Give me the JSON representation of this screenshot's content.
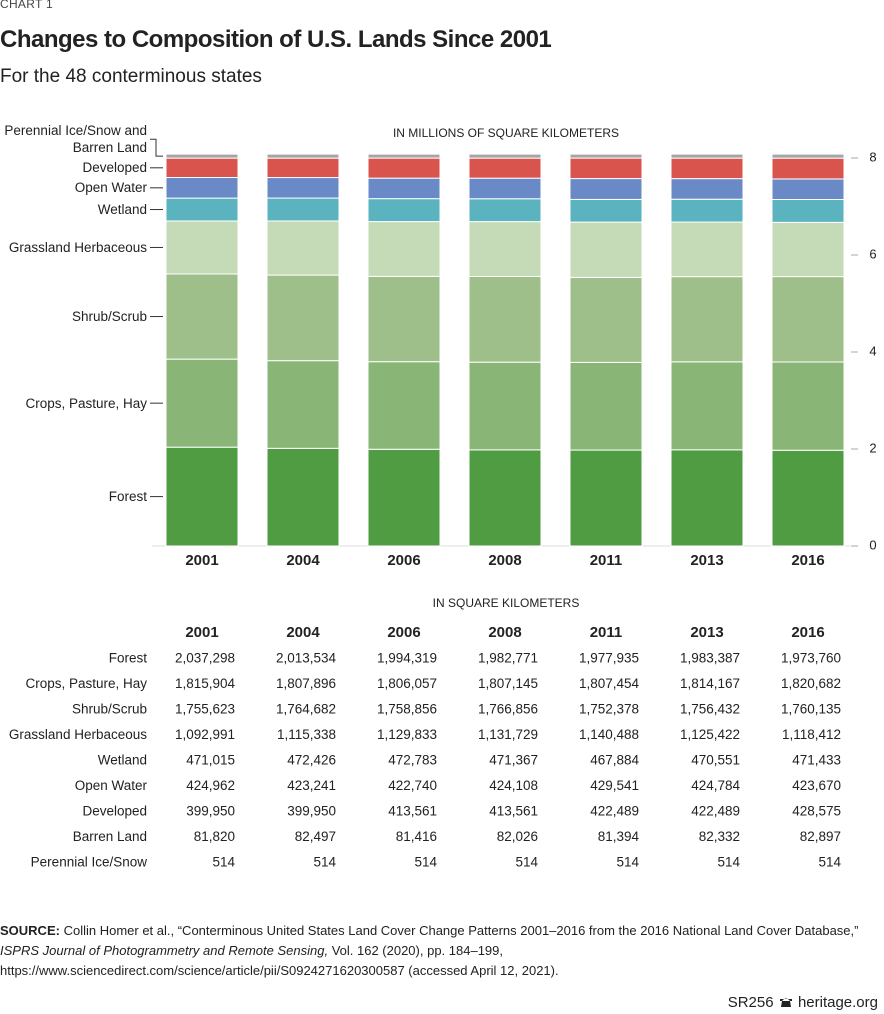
{
  "header": {
    "kicker": "CHART 1",
    "title": "Changes to Composition of U.S. Lands Since 2001",
    "subtitle": "For the 48 conterminous states"
  },
  "chart_data": {
    "type": "bar",
    "stacked": true,
    "y_label": "IN MILLIONS OF SQUARE KILOMETERS",
    "y_axis_side": "right",
    "categories": [
      "2001",
      "2004",
      "2006",
      "2008",
      "2011",
      "2013",
      "2016"
    ],
    "ylim": [
      0,
      8
    ],
    "yticks": [
      0,
      2,
      4,
      6,
      8
    ],
    "series": [
      {
        "name": "Forest",
        "color": "#4f9c43",
        "values": [
          2.037298,
          2.013534,
          1.994319,
          1.982771,
          1.977935,
          1.983387,
          1.97376
        ]
      },
      {
        "name": "Crops, Pasture, Hay",
        "color": "#89b677",
        "values": [
          1.815904,
          1.807896,
          1.806057,
          1.807145,
          1.807454,
          1.814167,
          1.820682
        ]
      },
      {
        "name": "Shrub/Scrub",
        "color": "#9ebf8a",
        "values": [
          1.755623,
          1.764682,
          1.758856,
          1.766856,
          1.752378,
          1.756432,
          1.760135
        ]
      },
      {
        "name": "Grassland Herbaceous",
        "color": "#c5dab6",
        "values": [
          1.092991,
          1.115338,
          1.129833,
          1.131729,
          1.140488,
          1.125422,
          1.118412
        ]
      },
      {
        "name": "Wetland",
        "color": "#5ab3bf",
        "values": [
          0.471015,
          0.472426,
          0.472783,
          0.471367,
          0.467884,
          0.470551,
          0.471433
        ]
      },
      {
        "name": "Open Water",
        "color": "#6a8ac7",
        "values": [
          0.424962,
          0.423241,
          0.42274,
          0.424108,
          0.429541,
          0.424784,
          0.42367
        ]
      },
      {
        "name": "Developed",
        "color": "#d9544d",
        "values": [
          0.39995,
          0.39995,
          0.413561,
          0.413561,
          0.422489,
          0.422489,
          0.428575
        ]
      },
      {
        "name": "Perennial Ice/Snow and Barren Land",
        "color": "#a5a5a5",
        "values": [
          0.082334,
          0.083011,
          0.08193,
          0.08254,
          0.081908,
          0.082846,
          0.083411
        ]
      }
    ]
  },
  "table": {
    "caption": "IN SQUARE KILOMETERS",
    "columns": [
      "2001",
      "2004",
      "2006",
      "2008",
      "2011",
      "2013",
      "2016"
    ],
    "rows": [
      [
        "Forest",
        "2,037,298",
        "2,013,534",
        "1,994,319",
        "1,982,771",
        "1,977,935",
        "1,983,387",
        "1,973,760"
      ],
      [
        "Crops, Pasture, Hay",
        "1,815,904",
        "1,807,896",
        "1,806,057",
        "1,807,145",
        "1,807,454",
        "1,814,167",
        "1,820,682"
      ],
      [
        "Shrub/Scrub",
        "1,755,623",
        "1,764,682",
        "1,758,856",
        "1,766,856",
        "1,752,378",
        "1,756,432",
        "1,760,135"
      ],
      [
        "Grassland Herbaceous",
        "1,092,991",
        "1,115,338",
        "1,129,833",
        "1,131,729",
        "1,140,488",
        "1,125,422",
        "1,118,412"
      ],
      [
        "Wetland",
        "471,015",
        "472,426",
        "472,783",
        "471,367",
        "467,884",
        "470,551",
        "471,433"
      ],
      [
        "Open Water",
        "424,962",
        "423,241",
        "422,740",
        "424,108",
        "429,541",
        "424,784",
        "423,670"
      ],
      [
        "Developed",
        "399,950",
        "399,950",
        "413,561",
        "413,561",
        "422,489",
        "422,489",
        "428,575"
      ],
      [
        "Barren Land",
        "81,820",
        "82,497",
        "81,416",
        "82,026",
        "81,394",
        "82,332",
        "82,897"
      ],
      [
        "Perennial Ice/Snow",
        "514",
        "514",
        "514",
        "514",
        "514",
        "514",
        "514"
      ]
    ]
  },
  "footer": {
    "source_label": "SOURCE:",
    "source_text": "Collin Homer et al., “Conterminous United States Land Cover Change Patterns 2001–2016 from the 2016 National Land Cover Database,”",
    "source_journal": "ISPRS Journal of Photogrammetry and Remote Sensing,",
    "source_rest": "Vol. 162 (2020), pp. 184–199, https://www.sciencedirect.com/science/article/pii/S0924271620300587 (accessed April 12, 2021).",
    "code": "SR256",
    "site": "heritage.org"
  }
}
